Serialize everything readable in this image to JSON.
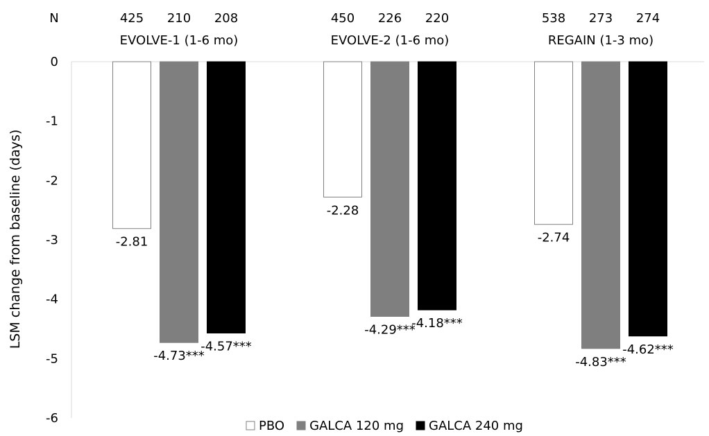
{
  "chart_data": {
    "type": "bar",
    "title": "",
    "xlabel": "",
    "ylabel": "LSM change from baseline (days)",
    "ylim": [
      -6,
      0
    ],
    "yticks": [
      "0",
      "-1",
      "-2",
      "-3",
      "-4",
      "-5",
      "-6"
    ],
    "n_label": "N",
    "categories": [
      "EVOLVE-1 (1-6 mo)",
      "EVOLVE-2 (1-6 mo)",
      "REGAIN (1-3 mo)"
    ],
    "n_values": [
      [
        "425",
        "210",
        "208"
      ],
      [
        "450",
        "226",
        "220"
      ],
      [
        "538",
        "273",
        "274"
      ]
    ],
    "series": [
      {
        "name": "PBO",
        "color": "#ffffff",
        "values": [
          -2.81,
          -2.28,
          -2.74
        ],
        "labels": [
          "-2.81",
          "-2.28",
          "-2.74"
        ]
      },
      {
        "name": "GALCA 120 mg",
        "color": "#7f7f7f",
        "values": [
          -4.73,
          -4.29,
          -4.83
        ],
        "labels": [
          "-4.73***",
          "-4.29***",
          "-4.83***"
        ]
      },
      {
        "name": "GALCA 240 mg",
        "color": "#000000",
        "values": [
          -4.57,
          -4.18,
          -4.62
        ],
        "labels": [
          "-4.57***",
          "-4.18***",
          "-4.62***"
        ]
      }
    ],
    "legend_position": "bottom",
    "grid": false
  }
}
